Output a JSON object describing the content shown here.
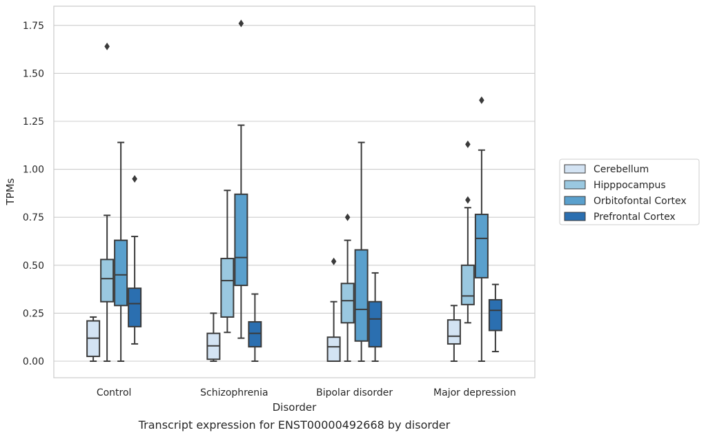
{
  "chart_data": {
    "type": "box",
    "title": "",
    "caption": "Transcript expression for ENST00000492668 by disorder",
    "xlabel": "Disorder",
    "ylabel": "TPMs",
    "ylim": [
      -0.085,
      1.85
    ],
    "yticks": [
      "0.00",
      "0.25",
      "0.50",
      "0.75",
      "1.00",
      "1.25",
      "1.50",
      "1.75"
    ],
    "ytick_values": [
      0,
      0.25,
      0.5,
      0.75,
      1.0,
      1.25,
      1.5,
      1.75
    ],
    "grid": "horizontal",
    "legend_position": "right",
    "categories": [
      "Control",
      "Schizophrenia",
      "Bipolar disorder",
      "Major depression"
    ],
    "series": [
      {
        "name": "Cerebellum",
        "color": "#d3e3f3",
        "boxes": [
          {
            "whislo": 0.0,
            "q1": 0.025,
            "med": 0.12,
            "q3": 0.21,
            "whishi": 0.23,
            "fliers": []
          },
          {
            "whislo": 0.0,
            "q1": 0.01,
            "med": 0.08,
            "q3": 0.145,
            "whishi": 0.25,
            "fliers": []
          },
          {
            "whislo": 0.0,
            "q1": 0.0,
            "med": 0.075,
            "q3": 0.125,
            "whishi": 0.31,
            "fliers": [
              0.52
            ]
          },
          {
            "whislo": 0.0,
            "q1": 0.09,
            "med": 0.13,
            "q3": 0.215,
            "whishi": 0.29,
            "fliers": []
          }
        ]
      },
      {
        "name": "Hipppocampus",
        "color": "#9ac8e0",
        "boxes": [
          {
            "whislo": 0.0,
            "q1": 0.31,
            "med": 0.43,
            "q3": 0.53,
            "whishi": 0.76,
            "fliers": [
              1.64
            ]
          },
          {
            "whislo": 0.15,
            "q1": 0.23,
            "med": 0.42,
            "q3": 0.535,
            "whishi": 0.89,
            "fliers": []
          },
          {
            "whislo": 0.0,
            "q1": 0.2,
            "med": 0.315,
            "q3": 0.405,
            "whishi": 0.63,
            "fliers": [
              0.75
            ]
          },
          {
            "whislo": 0.2,
            "q1": 0.295,
            "med": 0.34,
            "q3": 0.5,
            "whishi": 0.8,
            "fliers": [
              0.84,
              1.13
            ]
          }
        ]
      },
      {
        "name": "Orbitofontal Cortex",
        "color": "#5aa0cd",
        "boxes": [
          {
            "whislo": 0.0,
            "q1": 0.29,
            "med": 0.45,
            "q3": 0.63,
            "whishi": 1.14,
            "fliers": []
          },
          {
            "whislo": 0.12,
            "q1": 0.395,
            "med": 0.54,
            "q3": 0.87,
            "whishi": 1.23,
            "fliers": [
              1.76
            ]
          },
          {
            "whislo": 0.0,
            "q1": 0.105,
            "med": 0.27,
            "q3": 0.58,
            "whishi": 1.14,
            "fliers": []
          },
          {
            "whislo": 0.0,
            "q1": 0.435,
            "med": 0.64,
            "q3": 0.765,
            "whishi": 1.1,
            "fliers": [
              1.36
            ]
          }
        ]
      },
      {
        "name": "Prefrontal Cortex",
        "color": "#2b6fb0",
        "boxes": [
          {
            "whislo": 0.09,
            "q1": 0.18,
            "med": 0.3,
            "q3": 0.38,
            "whishi": 0.65,
            "fliers": [
              0.95
            ]
          },
          {
            "whislo": 0.0,
            "q1": 0.075,
            "med": 0.145,
            "q3": 0.205,
            "whishi": 0.35,
            "fliers": []
          },
          {
            "whislo": 0.0,
            "q1": 0.075,
            "med": 0.22,
            "q3": 0.31,
            "whishi": 0.46,
            "fliers": []
          },
          {
            "whislo": 0.05,
            "q1": 0.16,
            "med": 0.265,
            "q3": 0.32,
            "whishi": 0.4,
            "fliers": []
          }
        ]
      }
    ]
  }
}
